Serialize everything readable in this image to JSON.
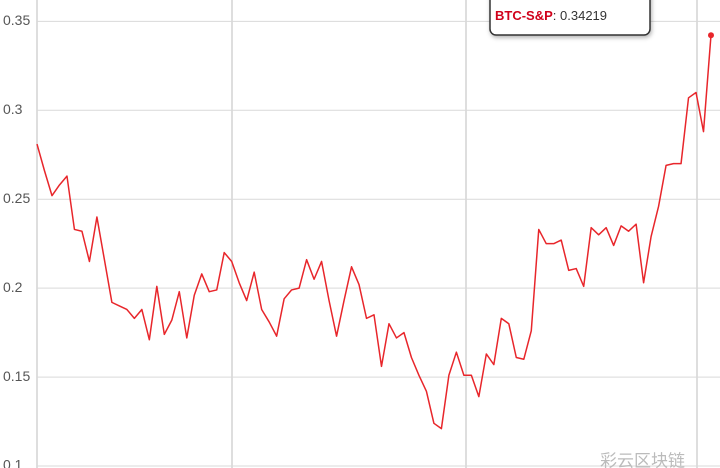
{
  "chart_data": {
    "type": "line",
    "series": [
      {
        "name": "BTC-S&P",
        "color": "#e8262b",
        "values": [
          0.281,
          0.266,
          0.252,
          0.258,
          0.263,
          0.233,
          0.232,
          0.215,
          0.24,
          0.216,
          0.192,
          0.19,
          0.188,
          0.183,
          0.188,
          0.171,
          0.201,
          0.174,
          0.182,
          0.198,
          0.172,
          0.196,
          0.208,
          0.198,
          0.199,
          0.22,
          0.215,
          0.203,
          0.193,
          0.209,
          0.188,
          0.181,
          0.173,
          0.194,
          0.199,
          0.2,
          0.216,
          0.205,
          0.215,
          0.193,
          0.173,
          0.193,
          0.212,
          0.202,
          0.183,
          0.185,
          0.156,
          0.18,
          0.172,
          0.175,
          0.161,
          0.151,
          0.142,
          0.124,
          0.121,
          0.151,
          0.164,
          0.151,
          0.151,
          0.139,
          0.163,
          0.157,
          0.183,
          0.18,
          0.161,
          0.16,
          0.176,
          0.233,
          0.225,
          0.225,
          0.227,
          0.21,
          0.211,
          0.201,
          0.234,
          0.23,
          0.234,
          0.224,
          0.235,
          0.232,
          0.236,
          0.203,
          0.229,
          0.246,
          0.269,
          0.27,
          0.27,
          0.307,
          0.31,
          0.288,
          0.34219
        ]
      }
    ],
    "ylim": [
      0.1,
      0.362
    ],
    "yticks": [
      0.1,
      0.15,
      0.2,
      0.25,
      0.3,
      0.35
    ],
    "grid": true,
    "watermark": "彩云区块链"
  }
}
